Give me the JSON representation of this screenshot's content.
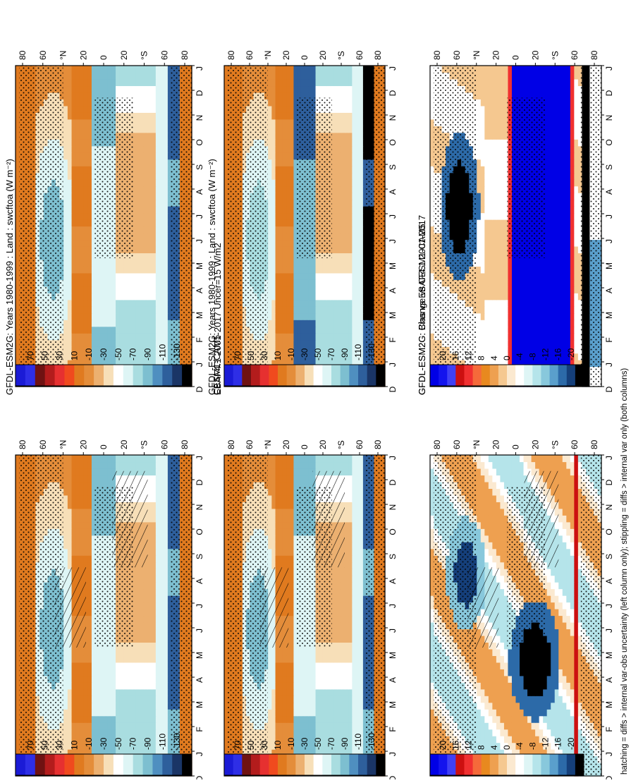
{
  "footer_note": "hatching = diffs > internal var-obs uncertainty (left column only); stippling = diffs > internal var only (both columns)",
  "colors": {
    "abs_palette": [
      "#1b1bd6",
      "#2e2ee6",
      "#6f1212",
      "#b31c1c",
      "#e63030",
      "#f04a1e",
      "#e07a1f",
      "#e48d3a",
      "#ecb070",
      "#f7dfb8",
      "#ffffff",
      "#def5f5",
      "#a9dde0",
      "#7dbfd0",
      "#4f8fc0",
      "#2e5f9c",
      "#1a3566",
      "#000000"
    ],
    "diff_palette": [
      "#0000e6",
      "#1414ee",
      "#4040f5",
      "#cc1010",
      "#f03030",
      "#f56a3a",
      "#e8891f",
      "#eea050",
      "#f5c890",
      "#fbe9d0",
      "#ffffff",
      "#def5f5",
      "#b5e4ea",
      "#88c8dc",
      "#5a9fcc",
      "#2c6aa8",
      "#153f7a",
      "#000000"
    ],
    "land": "#d26a28",
    "stipple": "#000000"
  },
  "chart_data": [
    {
      "type": "heatmap",
      "title": "GFDL-ESM2G: Years 1980-1999 : Land : swcftoa (W m⁻²)",
      "xlabel": "month",
      "ylabel": "latitude",
      "x": [
        "D",
        "J",
        "F",
        "M",
        "A",
        "M",
        "J",
        "J",
        "A",
        "S",
        "O",
        "N",
        "D",
        "J"
      ],
      "y_ticks": [
        "80",
        "60",
        "°N",
        "20",
        "0",
        "20",
        "°S",
        "60",
        "80"
      ],
      "colorbar": {
        "ticks": [
          "70",
          "50",
          "30",
          "10",
          "-10",
          "-30",
          "-50",
          "-70",
          "-90",
          "-110",
          "-130"
        ],
        "range": [
          70,
          -130
        ]
      },
      "hatching": true,
      "stippling": true
    },
    {
      "type": "heatmap",
      "title": "GFDL-ESM2G: Years 1980-1999 : Land : swcftoa (W m⁻²)",
      "xlabel": "month",
      "ylabel": "latitude",
      "x": [
        "D",
        "J",
        "F",
        "M",
        "A",
        "M",
        "J",
        "J",
        "A",
        "S",
        "O",
        "N",
        "D",
        "J"
      ],
      "y_ticks": [
        "80",
        "60",
        "°N",
        "20",
        "0",
        "20",
        "°S",
        "60",
        "80"
      ],
      "colorbar": {
        "ticks": [
          "70",
          "50",
          "30",
          "10",
          "-10",
          "-30",
          "-50",
          "-70",
          "-90",
          "-110",
          "-130"
        ],
        "range": [
          70,
          -130
        ]
      },
      "hatching": false,
      "stippling": true
    },
    {
      "type": "heatmap",
      "title": "EBAF4.1 2001-2017 Uncer=15 W/m2",
      "xlabel": "month",
      "ylabel": "latitude",
      "x": [
        "D",
        "J",
        "F",
        "M",
        "A",
        "M",
        "J",
        "J",
        "A",
        "S",
        "O",
        "N",
        "D",
        "J"
      ],
      "y_ticks": [
        "80",
        "60",
        "°N",
        "20",
        "0",
        "20",
        "°S",
        "60",
        "80"
      ],
      "colorbar": {
        "ticks": [
          "70",
          "50",
          "30",
          "10",
          "-10",
          "-30",
          "-50",
          "-70",
          "-90",
          "-110",
          "-130"
        ],
        "range": [
          70,
          -130
        ]
      },
      "hatching": true,
      "stippling": true
    },
    {
      "type": "heatmap",
      "title": "CESM1-CAM5",
      "xlabel": "month",
      "ylabel": "latitude",
      "x": [
        "D",
        "J",
        "F",
        "M",
        "A",
        "M",
        "J",
        "J",
        "A",
        "S",
        "O",
        "N",
        "D",
        "J"
      ],
      "y_ticks": [
        "80",
        "60",
        "°N",
        "20",
        "0",
        "20",
        "°S",
        "60",
        "80"
      ],
      "colorbar": {
        "ticks": [
          "70",
          "50",
          "30",
          "10",
          "-10",
          "-30",
          "-50",
          "-70",
          "-90",
          "-110",
          "-130"
        ],
        "range": [
          70,
          -130
        ]
      },
      "hatching": false,
      "stippling": true
    },
    {
      "type": "heatmap",
      "title": "GFDL-ESM2G: Bias vs EBAF4.1 2001-2017",
      "xlabel": "month",
      "ylabel": "latitude",
      "x": [
        "D",
        "J",
        "F",
        "M",
        "A",
        "M",
        "J",
        "J",
        "A",
        "S",
        "O",
        "N",
        "D",
        "J"
      ],
      "y_ticks": [
        "80",
        "60",
        "°N",
        "20",
        "0",
        "20",
        "°S",
        "60",
        "80"
      ],
      "colorbar": {
        "ticks": [
          "20",
          "16",
          "12",
          "8",
          "4",
          "0",
          "-4",
          "-8",
          "-12",
          "-16",
          "-20"
        ],
        "range": [
          20,
          -20
        ]
      },
      "hatching": true,
      "stippling": true
    },
    {
      "type": "heatmap",
      "title": "GFDL-ESM2G: Change vs CESM1-CAM5",
      "xlabel": "month",
      "ylabel": "latitude",
      "x": [
        "D",
        "J",
        "F",
        "M",
        "A",
        "M",
        "J",
        "J",
        "A",
        "S",
        "O",
        "N",
        "D",
        "J"
      ],
      "y_ticks": [
        "80",
        "60",
        "°N",
        "20",
        "0",
        "20",
        "°S",
        "60",
        "80"
      ],
      "colorbar": {
        "ticks": [
          "20",
          "16",
          "12",
          "8",
          "4",
          "0",
          "-4",
          "-8",
          "-12",
          "-16",
          "-20"
        ],
        "range": [
          20,
          -20
        ]
      },
      "hatching": false,
      "stippling": true
    }
  ]
}
